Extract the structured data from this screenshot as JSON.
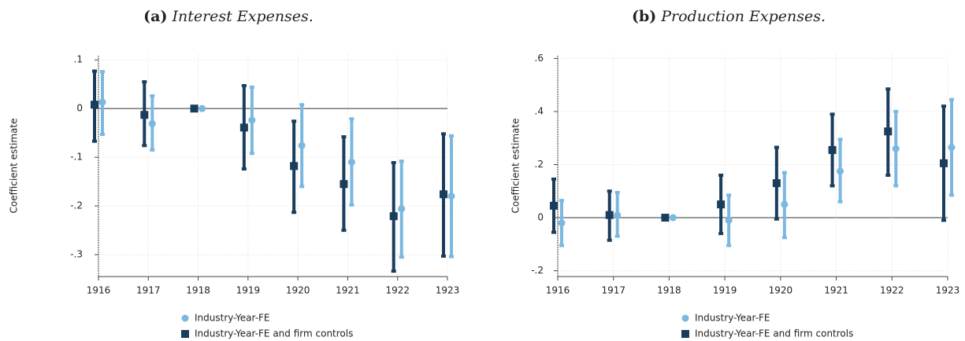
{
  "chart_data": [
    {
      "type": "errorbar",
      "label": "(a)",
      "title": "Interest Expenses.",
      "ylabel": "Coefficient estimate",
      "categories": [
        "1916",
        "1917",
        "1918",
        "1919",
        "1920",
        "1921",
        "1922",
        "1923"
      ],
      "ylim": [
        -0.345,
        0.11
      ],
      "yticks": [
        {
          "value": -0.3,
          "label": "-.3"
        },
        {
          "value": -0.2,
          "label": "-.2"
        },
        {
          "value": -0.1,
          "label": "-.1"
        },
        0,
        {
          "value": 0.1,
          "label": ".1"
        }
      ],
      "grid": true,
      "legend": "bottom",
      "series": [
        {
          "name": "Industry-Year-FE",
          "color": "#7ab8e0",
          "marker": "circle",
          "values": [
            0.013,
            -0.031,
            0,
            -0.024,
            -0.076,
            -0.11,
            -0.206,
            -0.18
          ],
          "lower": [
            -0.053,
            -0.085,
            0,
            -0.092,
            -0.16,
            -0.198,
            -0.305,
            -0.304
          ],
          "upper": [
            0.076,
            0.026,
            0,
            0.044,
            0.008,
            -0.021,
            -0.108,
            -0.056
          ]
        },
        {
          "name": "Industry-Year-FE and firm controls",
          "color": "#1a3d5c",
          "marker": "square",
          "values": [
            0.008,
            -0.013,
            0,
            -0.039,
            -0.118,
            -0.155,
            -0.221,
            -0.176
          ],
          "lower": [
            -0.067,
            -0.076,
            0,
            -0.124,
            -0.213,
            -0.25,
            -0.334,
            -0.303
          ],
          "upper": [
            0.077,
            0.055,
            0,
            0.047,
            -0.026,
            -0.058,
            -0.111,
            -0.052
          ]
        }
      ]
    },
    {
      "type": "errorbar",
      "label": "(b)",
      "title": "Production Expenses.",
      "ylabel": "Coefficient estimate",
      "categories": [
        "1916",
        "1917",
        "1918",
        "1919",
        "1920",
        "1921",
        "1922",
        "1923"
      ],
      "ylim": [
        -0.222,
        0.613
      ],
      "yticks": [
        {
          "value": -0.2,
          "label": "-.2"
        },
        0,
        {
          "value": 0.2,
          "label": ".2"
        },
        {
          "value": 0.4,
          "label": ".4"
        },
        {
          "value": 0.6,
          "label": ".6"
        }
      ],
      "grid": true,
      "legend": "bottom",
      "series": [
        {
          "name": "Industry-Year-FE",
          "color": "#7ab8e0",
          "marker": "circle",
          "values": [
            -0.02,
            0.01,
            0,
            -0.01,
            0.05,
            0.175,
            0.26,
            0.265
          ],
          "lower": [
            -0.105,
            -0.07,
            0,
            -0.105,
            -0.075,
            0.06,
            0.12,
            0.085
          ],
          "upper": [
            0.065,
            0.095,
            0,
            0.085,
            0.17,
            0.295,
            0.4,
            0.445
          ]
        },
        {
          "name": "Industry-Year-FE and firm controls",
          "color": "#1a3d5c",
          "marker": "square",
          "values": [
            0.045,
            0.01,
            0,
            0.05,
            0.13,
            0.255,
            0.325,
            0.205
          ],
          "lower": [
            -0.055,
            -0.085,
            0,
            -0.06,
            -0.005,
            0.12,
            0.16,
            -0.01
          ],
          "upper": [
            0.145,
            0.1,
            0,
            0.16,
            0.265,
            0.39,
            0.485,
            0.42
          ]
        }
      ]
    }
  ]
}
